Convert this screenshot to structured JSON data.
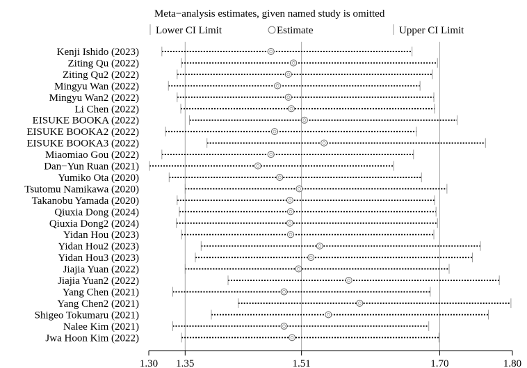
{
  "chart_data": {
    "type": "forest",
    "title": "Meta−analysis estimates, given named study is omitted",
    "legend": {
      "lower": "Lower CI Limit",
      "estimate": "Estimate",
      "upper": "Upper CI Limit",
      "placement": "top"
    },
    "xlim": [
      1.3,
      1.8
    ],
    "xticks": [
      1.3,
      1.35,
      1.51,
      1.7,
      1.8
    ],
    "xtick_labels": [
      "1.30",
      "1.35",
      "1.51",
      "1.70",
      "1.80"
    ],
    "reference_lines": [
      1.35,
      1.51,
      1.7
    ],
    "studies": [
      {
        "label": "Kenji Ishido (2023)",
        "lower": 1.318,
        "estimate": 1.468,
        "upper": 1.662
      },
      {
        "label": "Ziting Qu (2022)",
        "lower": 1.345,
        "estimate": 1.499,
        "upper": 1.697
      },
      {
        "label": "Ziting Qu2 (2022)",
        "lower": 1.339,
        "estimate": 1.492,
        "upper": 1.69
      },
      {
        "label": "Mingyu Wan (2022)",
        "lower": 1.327,
        "estimate": 1.477,
        "upper": 1.673
      },
      {
        "label": "Mingyu Wan2 (2022)",
        "lower": 1.339,
        "estimate": 1.492,
        "upper": 1.692
      },
      {
        "label": "Li Chen (2022)",
        "lower": 1.344,
        "estimate": 1.496,
        "upper": 1.693
      },
      {
        "label": "EISUKE BOOKA (2022)",
        "lower": 1.356,
        "estimate": 1.514,
        "upper": 1.724
      },
      {
        "label": "EISUKE BOOKA2 (2022)",
        "lower": 1.323,
        "estimate": 1.473,
        "upper": 1.668
      },
      {
        "label": "EISUKE BOOKA3 (2022)",
        "lower": 1.38,
        "estimate": 1.541,
        "upper": 1.763
      },
      {
        "label": "Miaomiao Gou (2022)",
        "lower": 1.318,
        "estimate": 1.468,
        "upper": 1.664
      },
      {
        "label": "Dan−Yun Ruan (2021)",
        "lower": 1.301,
        "estimate": 1.45,
        "upper": 1.637
      },
      {
        "label": "Yumiko Ota (2020)",
        "lower": 1.328,
        "estimate": 1.48,
        "upper": 1.675
      },
      {
        "label": "Tsutomu Namikawa (2020)",
        "lower": 1.35,
        "estimate": 1.507,
        "upper": 1.71
      },
      {
        "label": "Takanobu Yamada (2020)",
        "lower": 1.339,
        "estimate": 1.494,
        "upper": 1.693
      },
      {
        "label": "Qiuxia Dong (2024)",
        "lower": 1.342,
        "estimate": 1.495,
        "upper": 1.695
      },
      {
        "label": "Qiuxia Dong2 (2024)",
        "lower": 1.338,
        "estimate": 1.494,
        "upper": 1.697
      },
      {
        "label": "Yidan Hou (2023)",
        "lower": 1.345,
        "estimate": 1.495,
        "upper": 1.692
      },
      {
        "label": "Yidan Hou2 (2023)",
        "lower": 1.372,
        "estimate": 1.535,
        "upper": 1.756
      },
      {
        "label": "Yidan Hou3 (2023)",
        "lower": 1.364,
        "estimate": 1.523,
        "upper": 1.745
      },
      {
        "label": "Jiajia Yuan (2022)",
        "lower": 1.35,
        "estimate": 1.506,
        "upper": 1.713
      },
      {
        "label": "Jiajia Yuan2 (2022)",
        "lower": 1.409,
        "estimate": 1.575,
        "upper": 1.782
      },
      {
        "label": "Yang Chen (2021)",
        "lower": 1.333,
        "estimate": 1.486,
        "upper": 1.687
      },
      {
        "label": "Yang Chen2 (2021)",
        "lower": 1.423,
        "estimate": 1.59,
        "upper": 1.798
      },
      {
        "label": "Shigeo Tokumaru (2021)",
        "lower": 1.386,
        "estimate": 1.547,
        "upper": 1.767
      },
      {
        "label": "Nalee Kim (2021)",
        "lower": 1.333,
        "estimate": 1.486,
        "upper": 1.685
      },
      {
        "label": "Jwa Hoon Kim (2022)",
        "lower": 1.345,
        "estimate": 1.497,
        "upper": 1.699
      }
    ]
  }
}
